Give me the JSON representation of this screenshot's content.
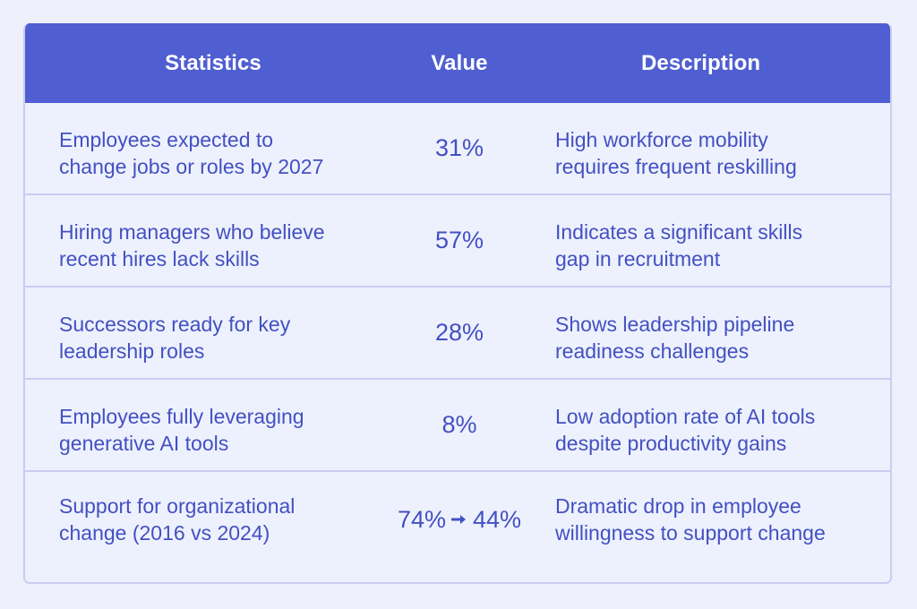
{
  "table": {
    "headers": {
      "statistics": "Statistics",
      "value": "Value",
      "description": "Description"
    },
    "rows": [
      {
        "statistic": [
          "Employees expected to",
          "change jobs or roles by 2027"
        ],
        "value": "31%",
        "description": [
          "High workforce mobility",
          "requires frequent reskilling"
        ]
      },
      {
        "statistic": [
          "Hiring managers who believe",
          "recent hires lack skills"
        ],
        "value": "57%",
        "description": [
          "Indicates a significant skills",
          "gap in recruitment"
        ]
      },
      {
        "statistic": [
          "Successors ready for key",
          "leadership roles"
        ],
        "value": "28%",
        "description": [
          "Shows leadership pipeline",
          "readiness challenges"
        ]
      },
      {
        "statistic": [
          "Employees fully leveraging",
          "generative AI tools"
        ],
        "value": "8%",
        "description": [
          "Low adoption rate of AI tools",
          "despite productivity gains"
        ]
      },
      {
        "statistic": [
          "Support for organizational",
          "change (2016 vs 2024)"
        ],
        "value_from": "74%",
        "value_to": "44%",
        "value_icon": "arrow-right-icon",
        "description": [
          "Dramatic drop in employee",
          "willingness to support change"
        ]
      }
    ]
  },
  "colors": {
    "background": "#eef0fb",
    "header_bg": "#4f5ed1",
    "header_text": "#ffffff",
    "body_text": "#4350c2",
    "border": "#c9cdf1",
    "row_bg": "#edf1fd"
  }
}
